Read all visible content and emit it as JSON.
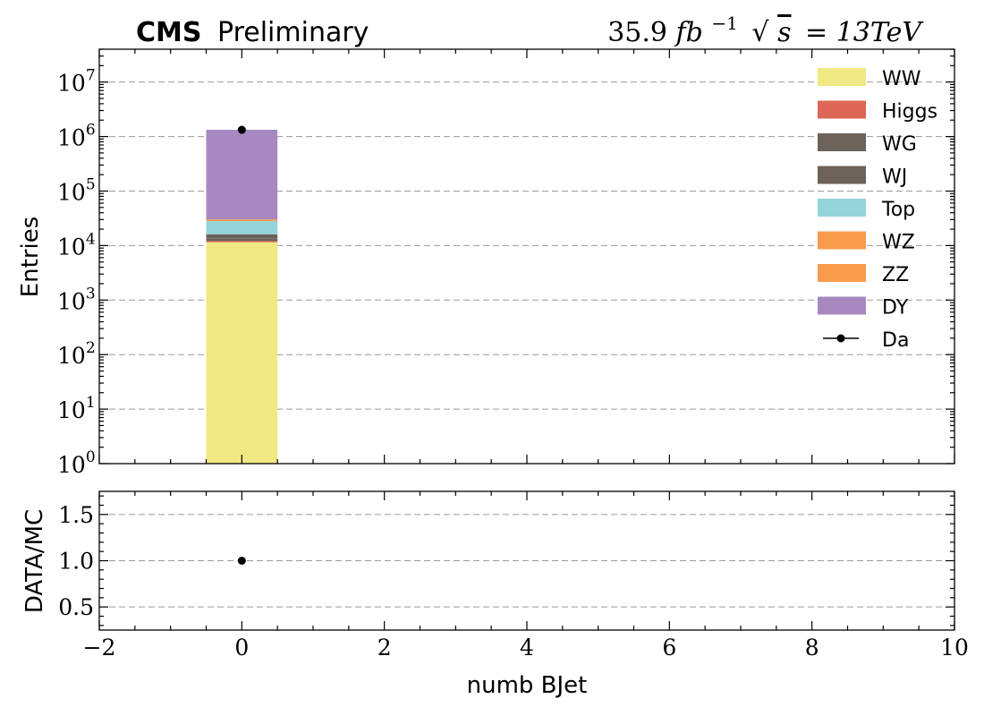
{
  "header": {
    "experiment": "CMS",
    "status": "Preliminary",
    "lumi_value": "35.9",
    "lumi_unit": "fb",
    "lumi_exp": "−1",
    "sqrt_arg": "s",
    "energy": "= 13TeV"
  },
  "chart_data": [
    {
      "type": "bar",
      "stacked": true,
      "log_y": true,
      "xlabel": "numb BJet",
      "ylabel": "Entries",
      "xlim": [
        -2,
        10
      ],
      "ylim": [
        1,
        40000000
      ],
      "grid": true,
      "legend_position": "top-right",
      "x_ticks": [
        -2,
        0,
        2,
        4,
        6,
        8,
        10
      ],
      "x_tick_labels": [
        "−2",
        "0",
        "2",
        "4",
        "6",
        "8",
        "10"
      ],
      "y_ticks": [
        1,
        10,
        100,
        1000,
        10000,
        100000,
        1000000,
        10000000
      ],
      "y_tick_exponents": [
        "0",
        "1",
        "2",
        "3",
        "4",
        "5",
        "6",
        "7"
      ],
      "y_tick_base": "10",
      "bin_edges": [
        -0.5,
        0.5
      ],
      "series": [
        {
          "name": "WW",
          "color": "#f0e882",
          "values": [
            11500
          ]
        },
        {
          "name": "Higgs",
          "color": "#dd6656",
          "values": [
            600
          ]
        },
        {
          "name": "WG",
          "color": "#6b6259",
          "values": [
            1500
          ]
        },
        {
          "name": "WJ",
          "color": "#6b6259",
          "values": [
            2500
          ]
        },
        {
          "name": "Top",
          "color": "#94d3da",
          "values": [
            12000
          ]
        },
        {
          "name": "WZ",
          "color": "#f99a4c",
          "values": [
            1500
          ]
        },
        {
          "name": "ZZ",
          "color": "#f99a4c",
          "values": [
            700
          ]
        },
        {
          "name": "DY",
          "color": "#a888c1",
          "values": [
            1300000
          ]
        }
      ],
      "data_points": {
        "name": "Da",
        "x": [
          0
        ],
        "y": [
          1330000
        ],
        "color": "#000000"
      }
    },
    {
      "type": "scatter",
      "xlabel": "numb BJet",
      "ylabel": "DATA/MC",
      "xlim": [
        -2,
        10
      ],
      "ylim": [
        0.25,
        1.75
      ],
      "grid": true,
      "x_ticks": [
        -2,
        0,
        2,
        4,
        6,
        8,
        10
      ],
      "x_tick_labels": [
        "−2",
        "0",
        "2",
        "4",
        "6",
        "8",
        "10"
      ],
      "y_ticks": [
        0.5,
        1.0,
        1.5
      ],
      "y_tick_labels": [
        "0.5",
        "1.0",
        "1.5"
      ],
      "points": [
        {
          "x": 0,
          "y": 1.0
        }
      ]
    }
  ]
}
